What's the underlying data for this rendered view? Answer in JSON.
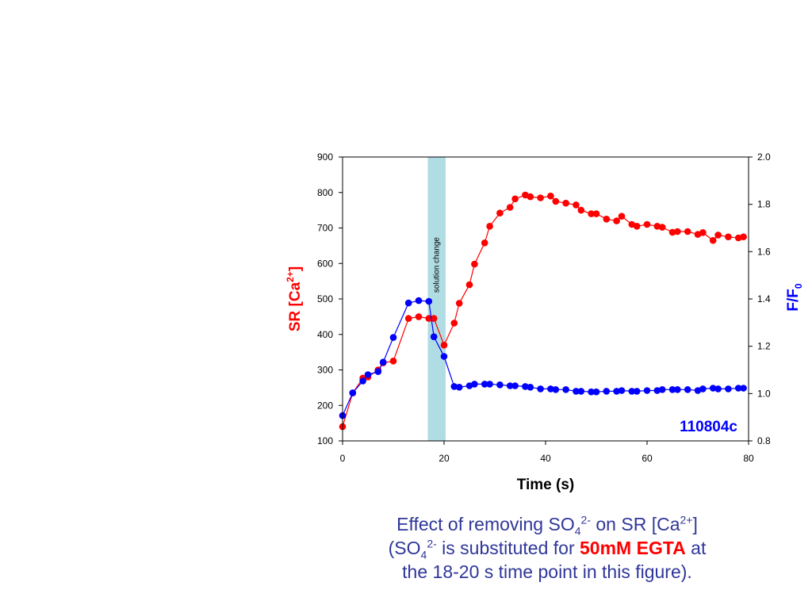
{
  "chart_data": {
    "type": "line",
    "title": "",
    "xlabel": "Time (s)",
    "ylabel_left": "SR [Ca²⁺]",
    "ylabel_right": "F/F₀",
    "xlim": [
      0,
      80
    ],
    "ylim_left": [
      100,
      900
    ],
    "ylim_right": [
      0.8,
      2.0
    ],
    "x_ticks": [
      0,
      20,
      40,
      60,
      80
    ],
    "y_left_ticks": [
      100,
      200,
      300,
      400,
      500,
      600,
      700,
      800,
      900
    ],
    "y_right_ticks": [
      "0.8",
      "1.0",
      "1.2",
      "1.4",
      "1.6",
      "1.8",
      "2.0"
    ],
    "grid": false,
    "annotation": "110804c",
    "shaded_region": {
      "label": "solution change",
      "x_start": 16.8,
      "x_end": 20.3,
      "color": "#b0dce3"
    },
    "series": [
      {
        "axis": "left",
        "color": "#ff0000",
        "points": [
          [
            0,
            140
          ],
          [
            2,
            235
          ],
          [
            4,
            277
          ],
          [
            5,
            280
          ],
          [
            7,
            300
          ],
          [
            8,
            320
          ],
          [
            10,
            325
          ],
          [
            13,
            445
          ],
          [
            15,
            450
          ],
          [
            17,
            445
          ],
          [
            18,
            445
          ],
          [
            20,
            370
          ],
          [
            22,
            432
          ],
          [
            23,
            488
          ],
          [
            25,
            540
          ],
          [
            26,
            598
          ],
          [
            28,
            658
          ],
          [
            29,
            705
          ],
          [
            31,
            742
          ],
          [
            33,
            758
          ],
          [
            34,
            782
          ],
          [
            36,
            793
          ],
          [
            37,
            788
          ],
          [
            39,
            785
          ],
          [
            41,
            790
          ],
          [
            42,
            775
          ],
          [
            44,
            770
          ],
          [
            46,
            765
          ],
          [
            47,
            750
          ],
          [
            49,
            740
          ],
          [
            50,
            740
          ],
          [
            52,
            725
          ],
          [
            54,
            720
          ],
          [
            55,
            733
          ],
          [
            57,
            710
          ],
          [
            58,
            705
          ],
          [
            60,
            710
          ],
          [
            62,
            705
          ],
          [
            63,
            702
          ],
          [
            65,
            688
          ],
          [
            66,
            690
          ],
          [
            68,
            690
          ],
          [
            70,
            682
          ],
          [
            71,
            687
          ],
          [
            73,
            665
          ],
          [
            74,
            680
          ],
          [
            76,
            675
          ],
          [
            78,
            672
          ],
          [
            79,
            675
          ]
        ]
      },
      {
        "axis": "right",
        "color": "#0000ff",
        "points": [
          [
            0,
            0.907
          ],
          [
            2,
            1.003
          ],
          [
            4,
            1.053
          ],
          [
            5,
            1.08
          ],
          [
            7,
            1.093
          ],
          [
            8,
            1.133
          ],
          [
            10,
            1.237
          ],
          [
            13,
            1.383
          ],
          [
            15,
            1.393
          ],
          [
            17,
            1.39
          ],
          [
            18,
            1.24
          ],
          [
            20,
            1.157
          ],
          [
            22,
            1.03
          ],
          [
            23,
            1.027
          ],
          [
            25,
            1.033
          ],
          [
            26,
            1.04
          ],
          [
            28,
            1.04
          ],
          [
            29,
            1.04
          ],
          [
            31,
            1.037
          ],
          [
            33,
            1.033
          ],
          [
            34,
            1.033
          ],
          [
            36,
            1.03
          ],
          [
            37,
            1.027
          ],
          [
            39,
            1.02
          ],
          [
            41,
            1.02
          ],
          [
            42,
            1.017
          ],
          [
            44,
            1.017
          ],
          [
            46,
            1.01
          ],
          [
            47,
            1.01
          ],
          [
            49,
            1.007
          ],
          [
            50,
            1.007
          ],
          [
            52,
            1.01
          ],
          [
            54,
            1.01
          ],
          [
            55,
            1.013
          ],
          [
            57,
            1.01
          ],
          [
            58,
            1.01
          ],
          [
            60,
            1.013
          ],
          [
            62,
            1.013
          ],
          [
            63,
            1.017
          ],
          [
            65,
            1.017
          ],
          [
            66,
            1.017
          ],
          [
            68,
            1.017
          ],
          [
            70,
            1.013
          ],
          [
            71,
            1.02
          ],
          [
            73,
            1.023
          ],
          [
            74,
            1.02
          ],
          [
            76,
            1.02
          ],
          [
            78,
            1.023
          ],
          [
            79,
            1.023
          ]
        ]
      }
    ]
  },
  "caption": {
    "line1_a": "Effect of removing SO",
    "line1_sub": "4",
    "line1_sup": "2-",
    "line1_b": " on SR [Ca",
    "line1_sup2": "2+",
    "line1_c": "]",
    "line2_a": "(SO",
    "line2_sub": "4",
    "line2_sup": "2-",
    "line2_b": " is substituted for ",
    "line2_emph": "50mM EGTA",
    "line2_c": " at",
    "line3": "the 18-20 s time point in this figure)."
  },
  "colors": {
    "left_axis": "#ff0000",
    "right_axis": "#0000ff",
    "annotation": "#0000ff",
    "caption": "#2f3699",
    "shade": "#b0dce3"
  }
}
